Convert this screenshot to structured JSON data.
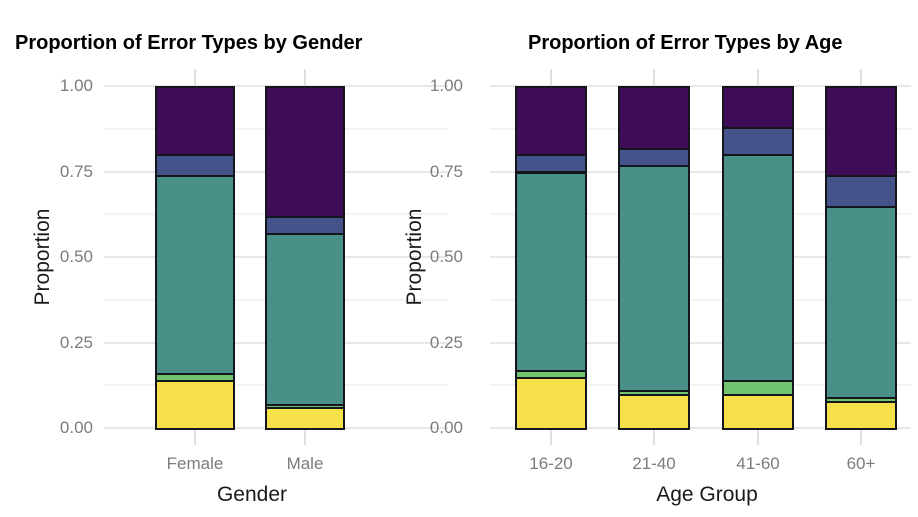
{
  "figure": {
    "background": "#ffffff",
    "tick_label_color": "#7c7c7c",
    "axis_title_color": "#1a1a1a",
    "bar_border_color": "#15151d"
  },
  "chart_data": [
    {
      "type": "bar",
      "stacked": true,
      "title": "Proportion of Error Types by Gender",
      "xlabel": "Gender",
      "ylabel": "Proportion",
      "categories": [
        "Female",
        "Male"
      ],
      "ylim": [
        0,
        1
      ],
      "y_ticks": [
        {
          "value": 1.0,
          "label": "1.00"
        },
        {
          "value": 0.75,
          "label": "0.75"
        },
        {
          "value": 0.5,
          "label": "0.50"
        },
        {
          "value": 0.25,
          "label": "0.25"
        },
        {
          "value": 0.0,
          "label": "0.00"
        }
      ],
      "grid": true,
      "legend_position": "none",
      "stack_order": "bottom-to-top as listed",
      "series": [
        {
          "name": "yellow-segment",
          "color": "#f6e14b",
          "values": [
            0.14,
            0.06
          ]
        },
        {
          "name": "green-segment",
          "color": "#70c46e",
          "values": [
            0.02,
            0.01
          ]
        },
        {
          "name": "teal-segment",
          "color": "#499089",
          "values": [
            0.58,
            0.5
          ]
        },
        {
          "name": "blue-segment",
          "color": "#44548b",
          "values": [
            0.06,
            0.05
          ]
        },
        {
          "name": "purple-segment",
          "color": "#3f0c57",
          "values": [
            0.2,
            0.38
          ]
        }
      ]
    },
    {
      "type": "bar",
      "stacked": true,
      "title": "Proportion of Error Types by Age",
      "xlabel": "Age Group",
      "ylabel": "Proportion",
      "categories": [
        "16-20",
        "21-40",
        "41-60",
        "60+"
      ],
      "ylim": [
        0,
        1
      ],
      "y_ticks": [
        {
          "value": 1.0,
          "label": "1.00"
        },
        {
          "value": 0.75,
          "label": "0.75"
        },
        {
          "value": 0.5,
          "label": "0.50"
        },
        {
          "value": 0.25,
          "label": "0.25"
        },
        {
          "value": 0.0,
          "label": "0.00"
        }
      ],
      "grid": true,
      "legend_position": "none",
      "stack_order": "bottom-to-top as listed",
      "series": [
        {
          "name": "yellow-segment",
          "color": "#f6e14b",
          "values": [
            0.15,
            0.1,
            0.1,
            0.08
          ]
        },
        {
          "name": "green-segment",
          "color": "#70c46e",
          "values": [
            0.02,
            0.01,
            0.04,
            0.01
          ]
        },
        {
          "name": "teal-segment",
          "color": "#499089",
          "values": [
            0.58,
            0.66,
            0.66,
            0.56
          ]
        },
        {
          "name": "blue-segment",
          "color": "#44548b",
          "values": [
            0.05,
            0.05,
            0.08,
            0.09
          ]
        },
        {
          "name": "purple-segment",
          "color": "#3f0c57",
          "values": [
            0.2,
            0.18,
            0.12,
            0.26
          ]
        }
      ]
    }
  ]
}
